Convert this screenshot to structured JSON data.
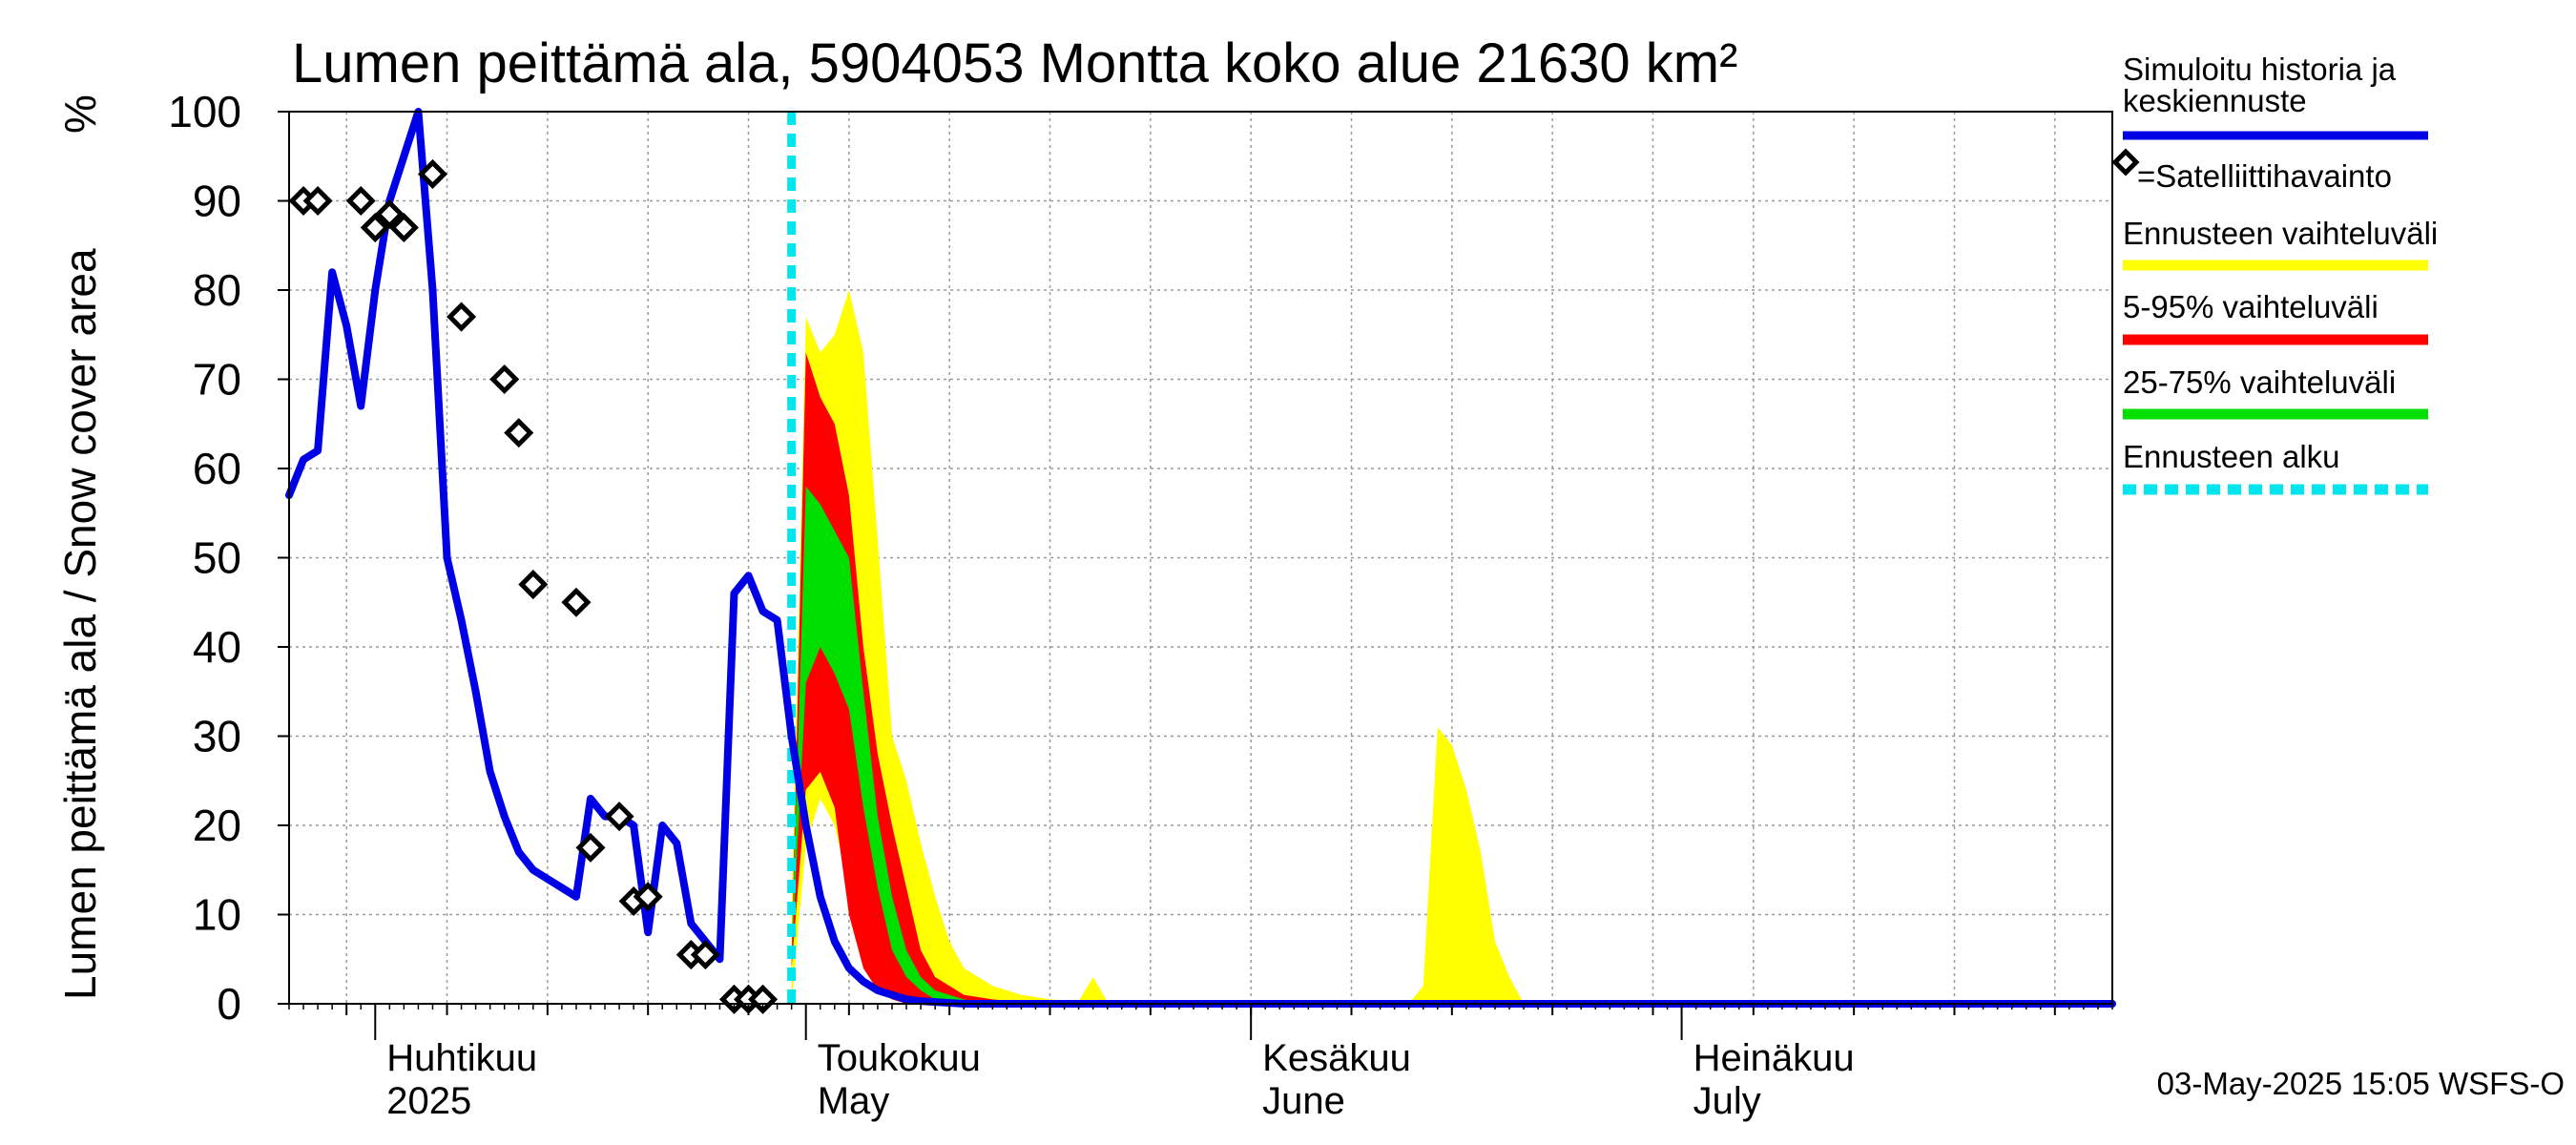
{
  "chart_data": {
    "type": "area",
    "title": "Lumen peittämä ala, 5904053 Montta koko alue 21630 km²",
    "ylabel": "Lumen peittämä ala / Snow cover area",
    "yunit": "%",
    "ylim": [
      0,
      100
    ],
    "yticks": [
      0,
      10,
      20,
      30,
      40,
      50,
      60,
      70,
      80,
      90,
      100
    ],
    "xlim": [
      "2025-03-26",
      "2025-07-31"
    ],
    "grid": true,
    "month_labels": [
      {
        "top": "Huhtikuu",
        "bottom": "2025",
        "x": "2025-04-01"
      },
      {
        "top": "Toukokuu",
        "bottom": "May",
        "x": "2025-05-01"
      },
      {
        "top": "Kesäkuu",
        "bottom": "June",
        "x": "2025-06-01"
      },
      {
        "top": "Heinäkuu",
        "bottom": "July",
        "x": "2025-07-01"
      }
    ],
    "forecast_start": "2025-04-30",
    "legend": [
      {
        "label": "Simuloitu historia ja keskiennuste",
        "color": "#0000e6",
        "style": "line"
      },
      {
        "label": "=Satelliittihavainto",
        "color": "#000000",
        "style": "marker"
      },
      {
        "label": "Ennusteen vaihteluväli",
        "color": "#ffff00",
        "style": "line"
      },
      {
        "label": "5-95% vaihteluväli",
        "color": "#ff0000",
        "style": "line"
      },
      {
        "label": "25-75% vaihteluväli",
        "color": "#00e000",
        "style": "line"
      },
      {
        "label": "Ennusteen alku",
        "color": "#00e5ee",
        "style": "dashed"
      }
    ],
    "series": [
      {
        "name": "Simuloitu historia ja keskiennuste",
        "color": "#0000e6",
        "x": [
          "2025-03-26",
          "2025-03-27",
          "2025-03-28",
          "2025-03-29",
          "2025-03-30",
          "2025-03-31",
          "2025-04-01",
          "2025-04-02",
          "2025-04-03",
          "2025-04-04",
          "2025-04-05",
          "2025-04-06",
          "2025-04-07",
          "2025-04-08",
          "2025-04-09",
          "2025-04-10",
          "2025-04-11",
          "2025-04-12",
          "2025-04-13",
          "2025-04-14",
          "2025-04-15",
          "2025-04-16",
          "2025-04-17",
          "2025-04-18",
          "2025-04-19",
          "2025-04-20",
          "2025-04-21",
          "2025-04-22",
          "2025-04-23",
          "2025-04-24",
          "2025-04-25",
          "2025-04-26",
          "2025-04-27",
          "2025-04-28",
          "2025-04-29",
          "2025-04-30",
          "2025-05-01",
          "2025-05-02",
          "2025-05-03",
          "2025-05-04",
          "2025-05-05",
          "2025-05-06",
          "2025-05-07",
          "2025-05-08",
          "2025-05-09",
          "2025-05-10",
          "2025-05-11",
          "2025-05-12",
          "2025-05-14",
          "2025-05-16",
          "2025-05-18",
          "2025-05-20",
          "2025-05-25",
          "2025-06-01",
          "2025-06-15",
          "2025-07-01",
          "2025-07-31"
        ],
        "y": [
          57,
          61,
          62,
          82,
          76,
          67,
          80,
          90,
          95,
          100,
          80,
          50,
          43,
          35,
          26,
          21,
          17,
          15,
          14,
          13,
          12,
          23,
          21,
          21,
          20,
          8,
          20,
          18,
          9,
          7,
          5,
          46,
          48,
          44,
          43,
          30,
          20,
          12,
          7,
          4,
          2.5,
          1.5,
          1,
          0.5,
          0.3,
          0.2,
          0.1,
          0,
          0,
          0,
          0,
          0,
          0,
          0,
          0,
          0,
          0
        ]
      }
    ],
    "bands": [
      {
        "name": "Ennusteen vaihteluväli",
        "color": "#ffff00",
        "x": [
          "2025-04-30",
          "2025-05-01",
          "2025-05-02",
          "2025-05-03",
          "2025-05-04",
          "2025-05-05",
          "2025-05-06",
          "2025-05-07",
          "2025-05-08",
          "2025-05-09",
          "2025-05-10",
          "2025-05-11",
          "2025-05-12",
          "2025-05-14",
          "2025-05-16",
          "2025-05-18",
          "2025-05-20",
          "2025-05-21",
          "2025-05-22",
          "2025-05-23",
          "2025-05-25",
          "2025-06-01",
          "2025-06-12",
          "2025-06-13",
          "2025-06-14",
          "2025-06-15",
          "2025-06-16",
          "2025-06-17",
          "2025-06-18",
          "2025-06-19",
          "2025-06-20",
          "2025-07-31"
        ],
        "upper": [
          10,
          77,
          73,
          75,
          80,
          73,
          52,
          30,
          25,
          18,
          12,
          7,
          4,
          2,
          1,
          0.5,
          0.3,
          3,
          0.2,
          0,
          0,
          0,
          0,
          2,
          31,
          29,
          24,
          17,
          7,
          3,
          0,
          0
        ],
        "lower": [
          0,
          18,
          23,
          20,
          13,
          6,
          2,
          0.5,
          0,
          0,
          0,
          0,
          0,
          0,
          0,
          0,
          0,
          0,
          0,
          0,
          0,
          0,
          0,
          0,
          0,
          0,
          0,
          0,
          0,
          0,
          0,
          0
        ]
      },
      {
        "name": "5-95% vaihteluväli",
        "color": "#ff0000",
        "x": [
          "2025-04-30",
          "2025-05-01",
          "2025-05-02",
          "2025-05-03",
          "2025-05-04",
          "2025-05-05",
          "2025-05-06",
          "2025-05-07",
          "2025-05-08",
          "2025-05-09",
          "2025-05-10",
          "2025-05-11",
          "2025-05-12",
          "2025-05-14",
          "2025-05-16",
          "2025-05-18"
        ],
        "upper": [
          5,
          73,
          68,
          65,
          57,
          40,
          28,
          20,
          13,
          6,
          3,
          2,
          1,
          0.5,
          0.2,
          0
        ],
        "lower": [
          4,
          24,
          26,
          22,
          10,
          4,
          1.5,
          0.5,
          0,
          0,
          0,
          0,
          0,
          0,
          0,
          0
        ]
      },
      {
        "name": "25-75% vaihteluväli",
        "color": "#00e000",
        "x": [
          "2025-04-30",
          "2025-05-01",
          "2025-05-02",
          "2025-05-03",
          "2025-05-04",
          "2025-05-05",
          "2025-05-06",
          "2025-05-07",
          "2025-05-08",
          "2025-05-09",
          "2025-05-10",
          "2025-05-12",
          "2025-05-14"
        ],
        "upper": [
          5,
          58,
          56,
          53,
          50,
          35,
          21,
          12,
          6,
          3,
          1.5,
          0.5,
          0
        ],
        "lower": [
          5,
          36,
          40,
          37,
          33,
          22,
          13,
          6,
          3,
          1.5,
          0.5,
          0,
          0
        ]
      }
    ],
    "observations": {
      "name": "Satelliittihavainto",
      "x": [
        "2025-03-27",
        "2025-03-28",
        "2025-03-31",
        "2025-04-01",
        "2025-04-02",
        "2025-04-03",
        "2025-04-05",
        "2025-04-07",
        "2025-04-10",
        "2025-04-11",
        "2025-04-12",
        "2025-04-15",
        "2025-04-16",
        "2025-04-18",
        "2025-04-19",
        "2025-04-20",
        "2025-04-23",
        "2025-04-24",
        "2025-04-26",
        "2025-04-27",
        "2025-04-28"
      ],
      "y": [
        90,
        90,
        90,
        87,
        88.5,
        87,
        93,
        77,
        70,
        64,
        47,
        45,
        17.5,
        21,
        11.5,
        12,
        5.5,
        5.5,
        0.5,
        0.5,
        0.5
      ]
    },
    "footer": "03-May-2025 15:05 WSFS-O"
  }
}
